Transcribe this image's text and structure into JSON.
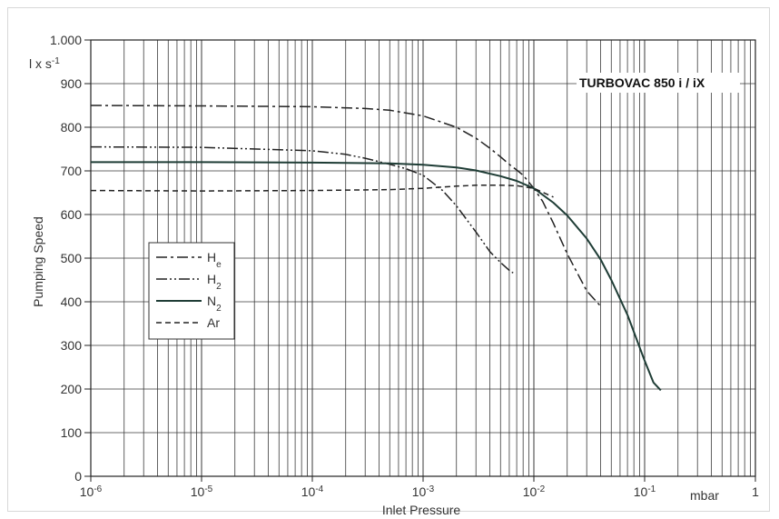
{
  "chart_data": {
    "type": "line",
    "title": "",
    "annotation": "TURBOVAC 850 i / iX",
    "xlabel": "Inlet Pressure",
    "ylabel": "Pumping Speed",
    "yunit_parts": {
      "base": "l x s",
      "sup": "-1"
    },
    "xunit": "mbar",
    "xscale": "log",
    "xlim": [
      1e-06,
      1
    ],
    "ylim": [
      0,
      1000
    ],
    "grid": true,
    "legend_position": "left-middle",
    "x_ticks": [
      {
        "value": 1e-06,
        "base": "10",
        "exp": "-6"
      },
      {
        "value": 1e-05,
        "base": "10",
        "exp": "-5"
      },
      {
        "value": 0.0001,
        "base": "10",
        "exp": "-4"
      },
      {
        "value": 0.001,
        "base": "10",
        "exp": "-3"
      },
      {
        "value": 0.01,
        "base": "10",
        "exp": "-2"
      },
      {
        "value": 0.1,
        "base": "10",
        "exp": "-1"
      },
      {
        "value": 1,
        "base": "1",
        "exp": ""
      }
    ],
    "y_ticks": [
      {
        "value": 0,
        "label": "0"
      },
      {
        "value": 100,
        "label": "100"
      },
      {
        "value": 200,
        "label": "200"
      },
      {
        "value": 300,
        "label": "300"
      },
      {
        "value": 400,
        "label": "400"
      },
      {
        "value": 500,
        "label": "500"
      },
      {
        "value": 600,
        "label": "600"
      },
      {
        "value": 700,
        "label": "700"
      },
      {
        "value": 800,
        "label": "800"
      },
      {
        "value": 900,
        "label": "900"
      },
      {
        "value": 1000,
        "label": "1.000"
      }
    ],
    "series": [
      {
        "name": "He",
        "label_main": "H",
        "label_sub": "e",
        "dash": "12,4,3,4",
        "color": "#222222",
        "x": [
          1e-06,
          1e-05,
          0.0001,
          0.0003,
          0.0005,
          0.001,
          0.002,
          0.003,
          0.004,
          0.005,
          0.006,
          0.007,
          0.008,
          0.01,
          0.012,
          0.015,
          0.02,
          0.03,
          0.04
        ],
        "y": [
          850,
          849,
          847,
          843,
          839,
          826,
          800,
          775,
          752,
          732,
          715,
          702,
          690,
          660,
          630,
          580,
          510,
          425,
          390
        ]
      },
      {
        "name": "H2",
        "label_main": "H",
        "label_sub": "2",
        "dash": "12,3,2,3,2,3",
        "color": "#222222",
        "x": [
          1e-06,
          1e-05,
          0.0001,
          0.0002,
          0.0003,
          0.0005,
          0.0007,
          0.001,
          0.0015,
          0.002,
          0.003,
          0.004,
          0.005,
          0.006,
          0.0065
        ],
        "y": [
          755,
          754,
          746,
          738,
          729,
          715,
          705,
          690,
          655,
          620,
          560,
          515,
          490,
          472,
          466
        ]
      },
      {
        "name": "N2",
        "label_main": "N",
        "label_sub": "2",
        "dash": "",
        "color": "#1f3d36",
        "x": [
          1e-06,
          1e-05,
          0.0001,
          0.0005,
          0.001,
          0.002,
          0.003,
          0.005,
          0.007,
          0.01,
          0.015,
          0.02,
          0.03,
          0.04,
          0.05,
          0.07,
          0.1,
          0.12,
          0.14
        ],
        "y": [
          720,
          720,
          719,
          717,
          714,
          708,
          701,
          688,
          677,
          660,
          627,
          598,
          545,
          497,
          450,
          370,
          265,
          215,
          197
        ]
      },
      {
        "name": "Ar",
        "label_main": "Ar",
        "label_sub": "",
        "dash": "6,4",
        "color": "#222222",
        "x": [
          1e-06,
          1e-05,
          0.0001,
          0.0005,
          0.001,
          0.002,
          0.003,
          0.005,
          0.007,
          0.01,
          0.015
        ],
        "y": [
          655,
          654,
          655,
          657,
          660,
          665,
          667,
          667,
          666,
          660,
          640
        ]
      }
    ]
  }
}
